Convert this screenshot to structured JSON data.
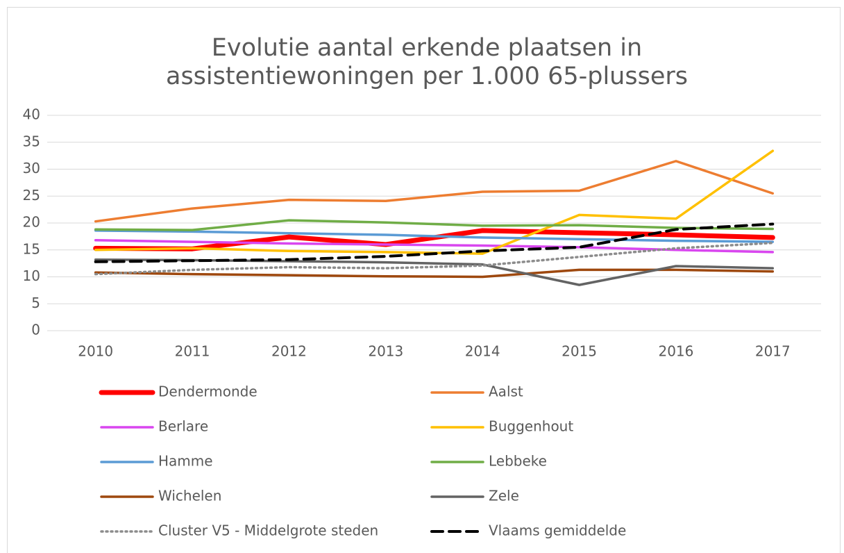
{
  "chart_data": {
    "type": "line",
    "title": [
      "Evolutie aantal erkende plaatsen in",
      "assistentiewoningen per 1.000 65-plussers"
    ],
    "categories": [
      "2010",
      "2011",
      "2012",
      "2013",
      "2014",
      "2015",
      "2016",
      "2017"
    ],
    "ylim": [
      0,
      40
    ],
    "yticks": [
      0,
      5,
      10,
      15,
      20,
      25,
      30,
      35,
      40
    ],
    "grid": true,
    "series": [
      {
        "name": "Dendermonde",
        "color": "#ff0000",
        "line_width": 7,
        "values": [
          15.3,
          15.2,
          17.4,
          16,
          18.6,
          18.2,
          17.8,
          17.3
        ]
      },
      {
        "name": "Aalst",
        "color": "#ed7d31",
        "line_width": 3.5,
        "values": [
          20.3,
          22.7,
          24.3,
          24.1,
          25.8,
          26,
          31.5,
          25.5
        ]
      },
      {
        "name": "Berlare",
        "color": "#d946ef",
        "line_width": 3.5,
        "values": [
          16.8,
          16.5,
          16.2,
          16,
          15.8,
          15.5,
          15,
          14.6
        ]
      },
      {
        "name": "Buggenhout",
        "color": "#ffc000",
        "line_width": 3.5,
        "values": [
          15,
          15.3,
          14.8,
          14.6,
          14.3,
          21.5,
          20.8,
          33.4
        ]
      },
      {
        "name": "Hamme",
        "color": "#5b9bd5",
        "line_width": 3.5,
        "values": [
          18.6,
          18.4,
          18.1,
          17.8,
          17.3,
          17,
          16.7,
          16.5
        ]
      },
      {
        "name": "Lebbeke",
        "color": "#70ad47",
        "line_width": 3.5,
        "values": [
          18.8,
          18.7,
          20.5,
          20.1,
          19.5,
          19.6,
          19.1,
          18.9
        ]
      },
      {
        "name": "Wichelen",
        "color": "#9e480e",
        "line_width": 3.5,
        "values": [
          10.8,
          10.5,
          10.3,
          10.1,
          10,
          11.3,
          11.3,
          11
        ]
      },
      {
        "name": "Zele",
        "color": "#636363",
        "line_width": 3.5,
        "values": [
          13.2,
          13.1,
          12.9,
          12.7,
          12.3,
          8.5,
          12,
          11.6
        ]
      },
      {
        "name": "Cluster V5 - Middelgrote steden",
        "color": "#8c8c8c",
        "line_width": 3.5,
        "line_style": "dotted",
        "values": [
          10.5,
          11.3,
          11.8,
          11.6,
          12.1,
          13.7,
          15.3,
          16.3
        ]
      },
      {
        "name": "Vlaams gemiddelde",
        "color": "#000000",
        "line_width": 4,
        "line_style": "dashed",
        "values": [
          12.8,
          13,
          13.2,
          13.8,
          14.8,
          15.5,
          18.8,
          19.8
        ]
      }
    ]
  }
}
